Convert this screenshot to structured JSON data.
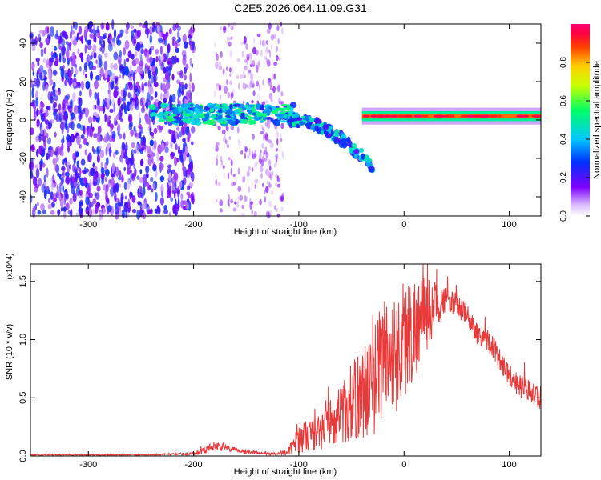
{
  "title": "C2E5.2026.064.11.09.G31",
  "chart_data": [
    {
      "type": "heatmap",
      "title": "C2E5.2026.064.11.09.G31",
      "xlabel": "Height of straight line (km)",
      "ylabel": "Frequency (Hz)",
      "xlim": [
        -355,
        130
      ],
      "ylim": [
        -50,
        50
      ],
      "xticks": [
        -300,
        -200,
        -100,
        0,
        100
      ],
      "yticks": [
        -40,
        -20,
        0,
        20,
        40
      ],
      "colorbar": {
        "label": "Normalized spectral amplitude",
        "range": [
          0,
          1
        ],
        "ticks": [
          "0.0",
          "0.2",
          "0.4",
          "0.6",
          "0.8"
        ]
      },
      "regions": [
        {
          "name": "broadband noise",
          "x_range": [
            -355,
            -200
          ],
          "freq_range": [
            -50,
            50
          ],
          "amplitude": 0.25
        },
        {
          "name": "scattered noise",
          "x_range": [
            -180,
            -115
          ],
          "freq_range": [
            -50,
            50
          ],
          "amplitude": 0.1
        },
        {
          "name": "signal trace",
          "x_range": [
            -240,
            -105
          ],
          "freq_center": 3,
          "freq_halfwidth": 5,
          "amplitude": 0.45
        },
        {
          "name": "descending branch",
          "x_range": [
            -110,
            -30
          ],
          "freq_start": 0,
          "freq_end": -25,
          "amplitude": 0.4
        },
        {
          "name": "steady tone",
          "x_range": [
            -40,
            130
          ],
          "freq_center": 2,
          "freq_halfwidth": 2,
          "amplitude": 0.85
        }
      ]
    },
    {
      "type": "line",
      "xlabel": "Height of straight line (km)",
      "ylabel": "SNR (10 * v/v)",
      "y_multiplier": "(x10^4)",
      "xlim": [
        -355,
        130
      ],
      "ylim": [
        0,
        1.65
      ],
      "xticks": [
        -300,
        -200,
        -100,
        0,
        100
      ],
      "yticks": [
        0.0,
        0.5,
        1.0,
        1.5
      ],
      "series": [
        {
          "name": "SNR",
          "color": "#e83a3a",
          "x": [
            -355,
            -300,
            -250,
            -200,
            -190,
            -180,
            -170,
            -160,
            -150,
            -140,
            -130,
            -120,
            -110,
            -100,
            -90,
            -80,
            -70,
            -60,
            -50,
            -40,
            -30,
            -20,
            -10,
            0,
            10,
            20,
            30,
            40,
            50,
            60,
            70,
            80,
            90,
            100,
            110,
            120,
            130
          ],
          "values": [
            0.01,
            0.01,
            0.01,
            0.02,
            0.05,
            0.09,
            0.07,
            0.05,
            0.04,
            0.03,
            0.02,
            0.02,
            0.04,
            0.15,
            0.18,
            0.2,
            0.3,
            0.35,
            0.45,
            0.55,
            0.6,
            0.9,
            0.85,
            1.0,
            1.1,
            1.2,
            1.3,
            1.35,
            1.3,
            1.2,
            1.05,
            1.0,
            0.85,
            0.7,
            0.6,
            0.55,
            0.5
          ],
          "noise_amplitude": [
            0.005,
            0.005,
            0.005,
            0.01,
            0.03,
            0.04,
            0.03,
            0.02,
            0.02,
            0.01,
            0.01,
            0.01,
            0.03,
            0.12,
            0.15,
            0.15,
            0.2,
            0.25,
            0.35,
            0.4,
            0.45,
            0.55,
            0.5,
            0.55,
            0.45,
            0.35,
            0.2,
            0.1,
            0.1,
            0.1,
            0.1,
            0.1,
            0.1,
            0.1,
            0.1,
            0.1,
            0.1
          ]
        }
      ]
    }
  ]
}
